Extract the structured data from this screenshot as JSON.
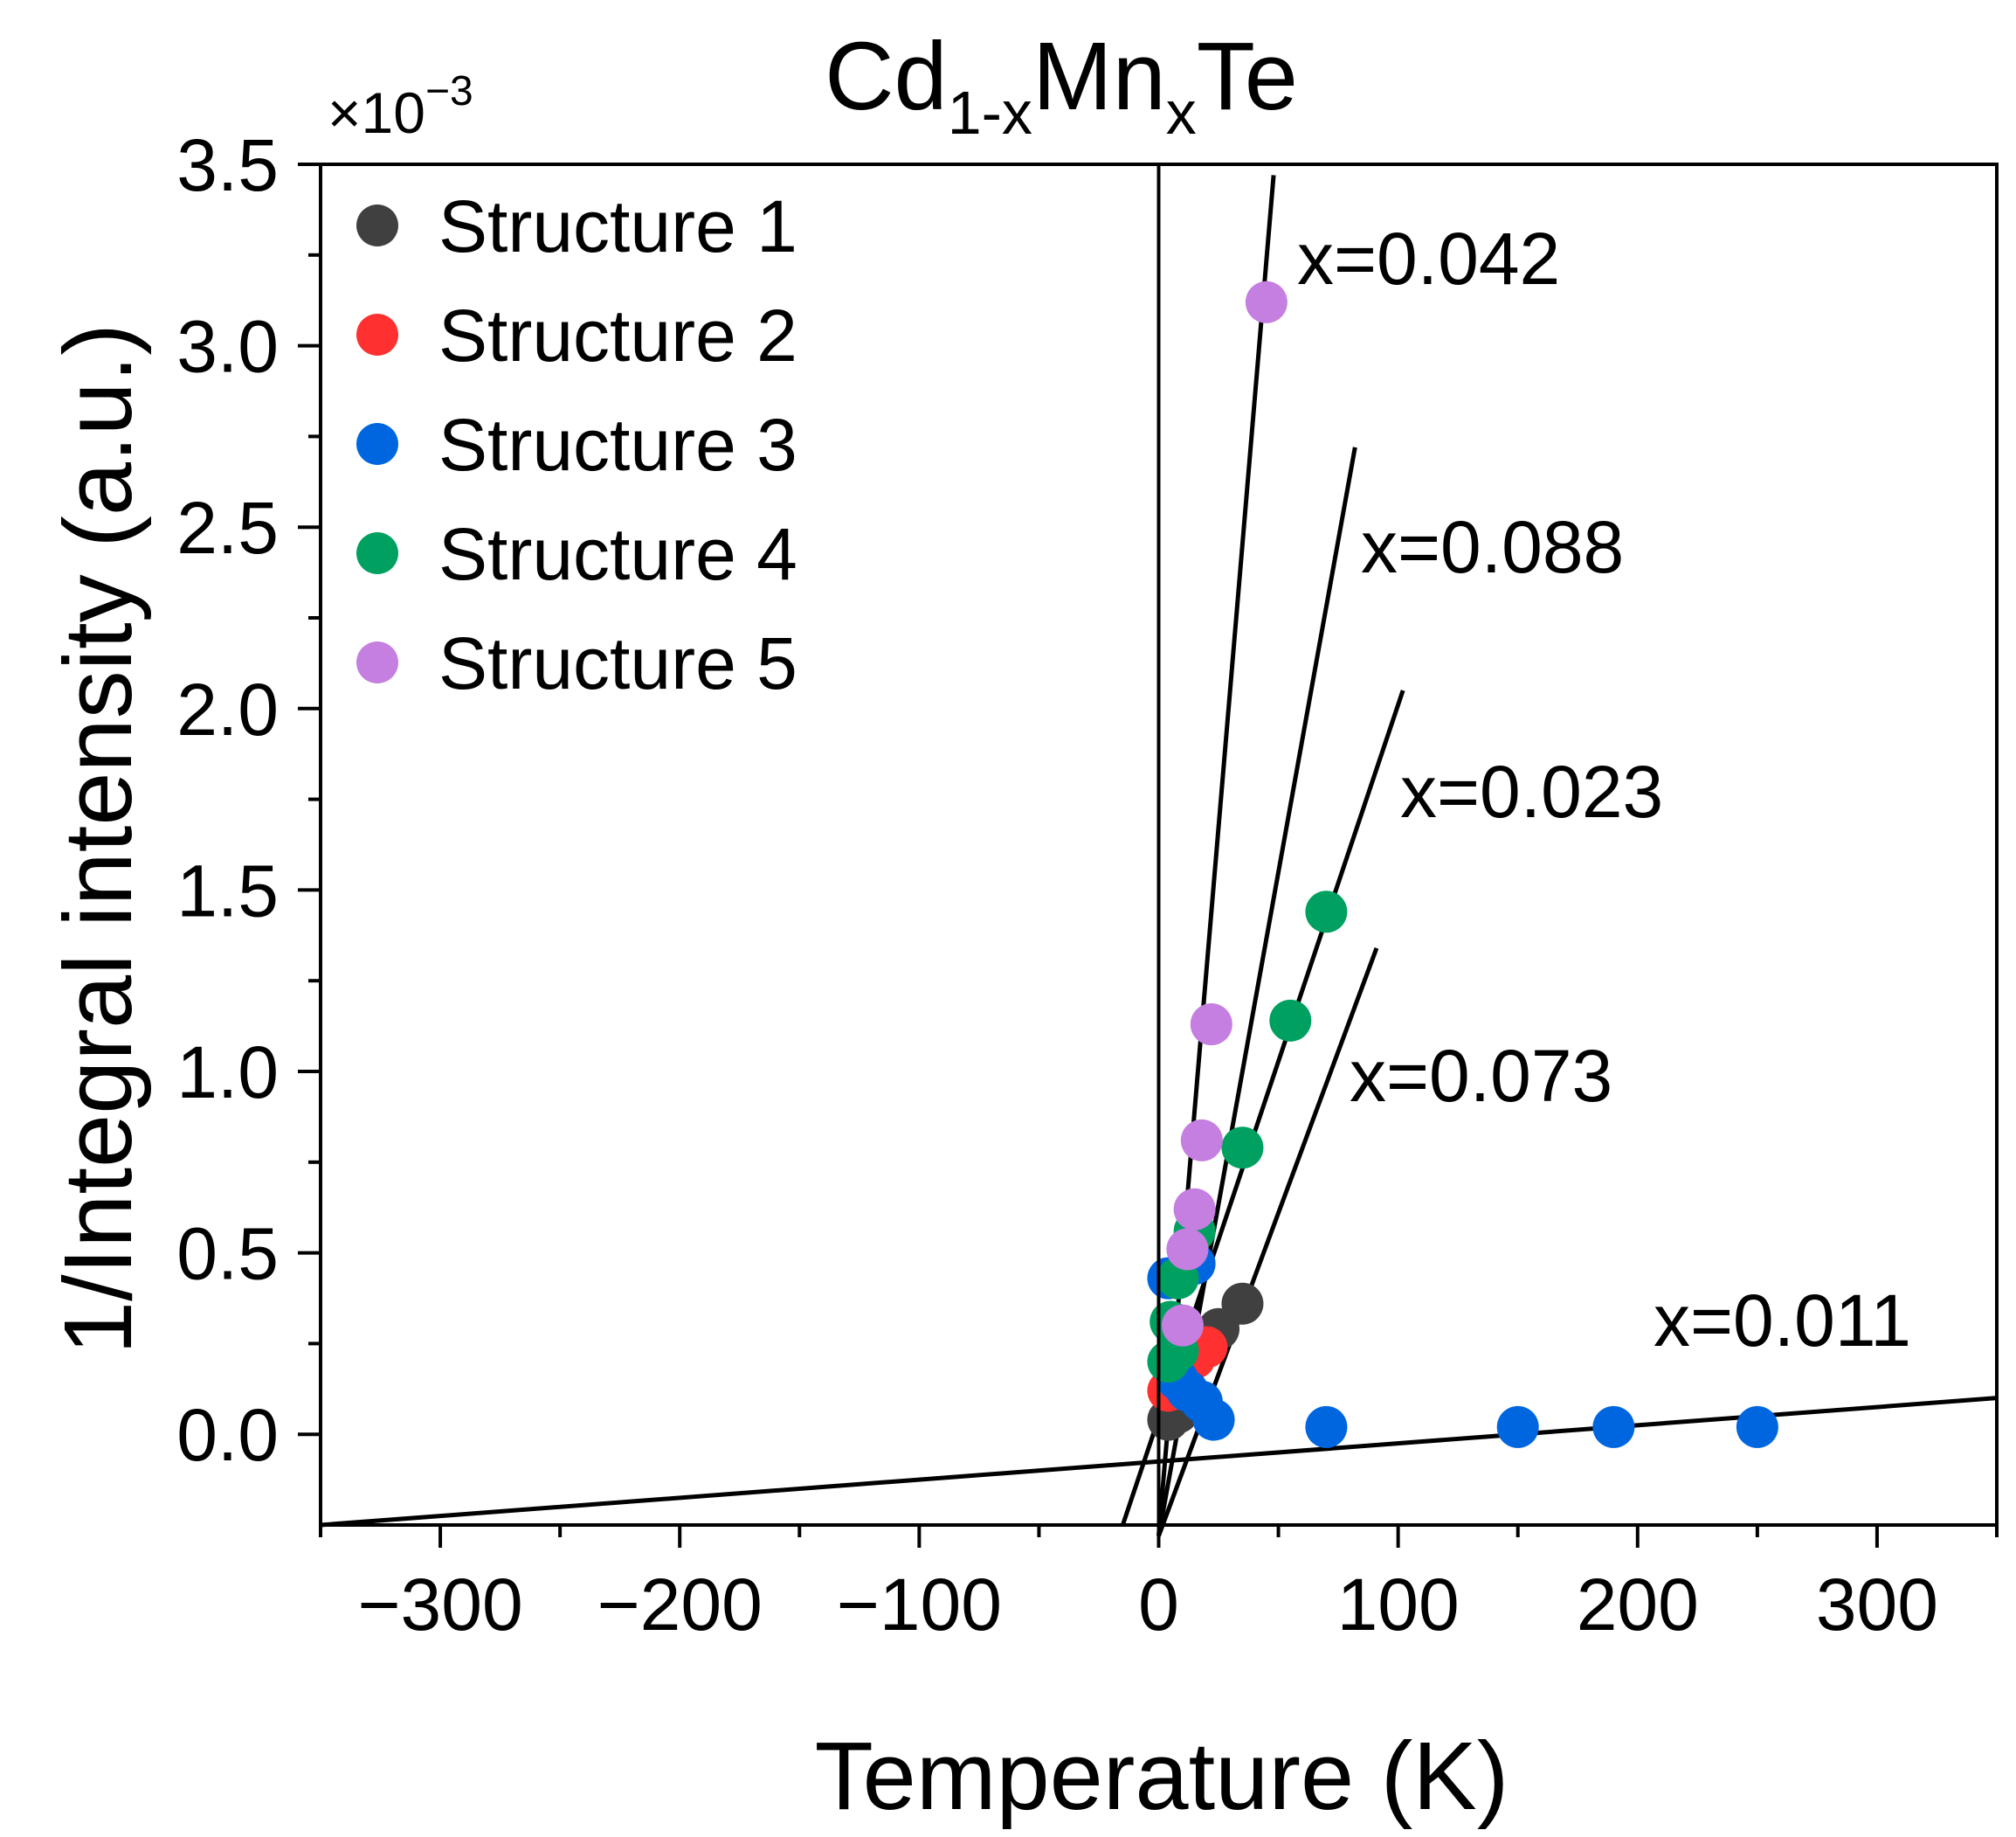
{
  "chart_data": {
    "type": "scatter",
    "title": {
      "base1": "Cd",
      "sub1": "1-x",
      "base2": "Mn",
      "sub2": "x",
      "base3": "Te"
    },
    "xlabel": "Temperature (K)",
    "ylabel": "1/Integral intensity (a.u.)",
    "y_multiplier": {
      "base": "×10",
      "exponent": "−3"
    },
    "xlim": [
      -350,
      350
    ],
    "ylim": [
      -0.25,
      3.5
    ],
    "x_ticks": [
      -300,
      -200,
      -100,
      0,
      100,
      200,
      300
    ],
    "x_tick_labels": [
      "−300",
      "−200",
      "−100",
      "0",
      "100",
      "200",
      "300"
    ],
    "y_ticks": [
      0.0,
      0.5,
      1.0,
      1.5,
      2.0,
      2.5,
      3.0,
      3.5
    ],
    "y_tick_labels": [
      "0.0",
      "0.5",
      "1.0",
      "1.5",
      "2.0",
      "2.5",
      "3.0",
      "3.5"
    ],
    "vertical_line_x": 0,
    "legend_position": "top-left",
    "series": [
      {
        "name": "Structure 1",
        "color": "#404040",
        "points": [
          [
            4,
            0.04
          ],
          [
            8,
            0.06
          ],
          [
            25,
            0.29
          ],
          [
            35,
            0.36
          ]
        ]
      },
      {
        "name": "Structure 2",
        "color": "#ff3030",
        "points": [
          [
            4,
            0.12
          ],
          [
            8,
            0.17
          ],
          [
            15,
            0.21
          ],
          [
            20,
            0.24
          ]
        ]
      },
      {
        "name": "Structure 3",
        "color": "#0066e0",
        "points": [
          [
            4,
            0.43
          ],
          [
            15,
            0.47
          ],
          [
            8,
            0.15
          ],
          [
            12,
            0.12
          ],
          [
            18,
            0.09
          ],
          [
            23,
            0.04
          ],
          [
            70,
            0.02
          ],
          [
            150,
            0.02
          ],
          [
            190,
            0.02
          ],
          [
            250,
            0.02
          ]
        ]
      },
      {
        "name": "Structure 4",
        "color": "#00a060",
        "points": [
          [
            4,
            0.2
          ],
          [
            8,
            0.23
          ],
          [
            5,
            0.31
          ],
          [
            8,
            0.43
          ],
          [
            15,
            0.56
          ],
          [
            35,
            0.79
          ],
          [
            55,
            1.14
          ],
          [
            70,
            1.44
          ]
        ]
      },
      {
        "name": "Structure 5",
        "color": "#c47fe0",
        "points": [
          [
            10,
            0.3
          ],
          [
            12,
            0.51
          ],
          [
            15,
            0.62
          ],
          [
            18,
            0.81
          ],
          [
            22,
            1.13
          ],
          [
            45,
            3.12
          ]
        ]
      }
    ],
    "fit_lines": [
      {
        "label": "x=0.042",
        "x": [
          0,
          48
        ],
        "y": [
          -0.28,
          3.47
        ]
      },
      {
        "label": "x=0.088",
        "x": [
          0,
          82
        ],
        "y": [
          -0.28,
          2.72
        ]
      },
      {
        "label": "x=0.023",
        "x": [
          -15,
          102
        ],
        "y": [
          -0.25,
          2.05
        ]
      },
      {
        "label": "x=0.073",
        "x": [
          0,
          91
        ],
        "y": [
          -0.28,
          1.34
        ]
      },
      {
        "label": "x=0.011",
        "x": [
          -350,
          350
        ],
        "y": [
          -0.25,
          0.1
        ]
      }
    ]
  }
}
